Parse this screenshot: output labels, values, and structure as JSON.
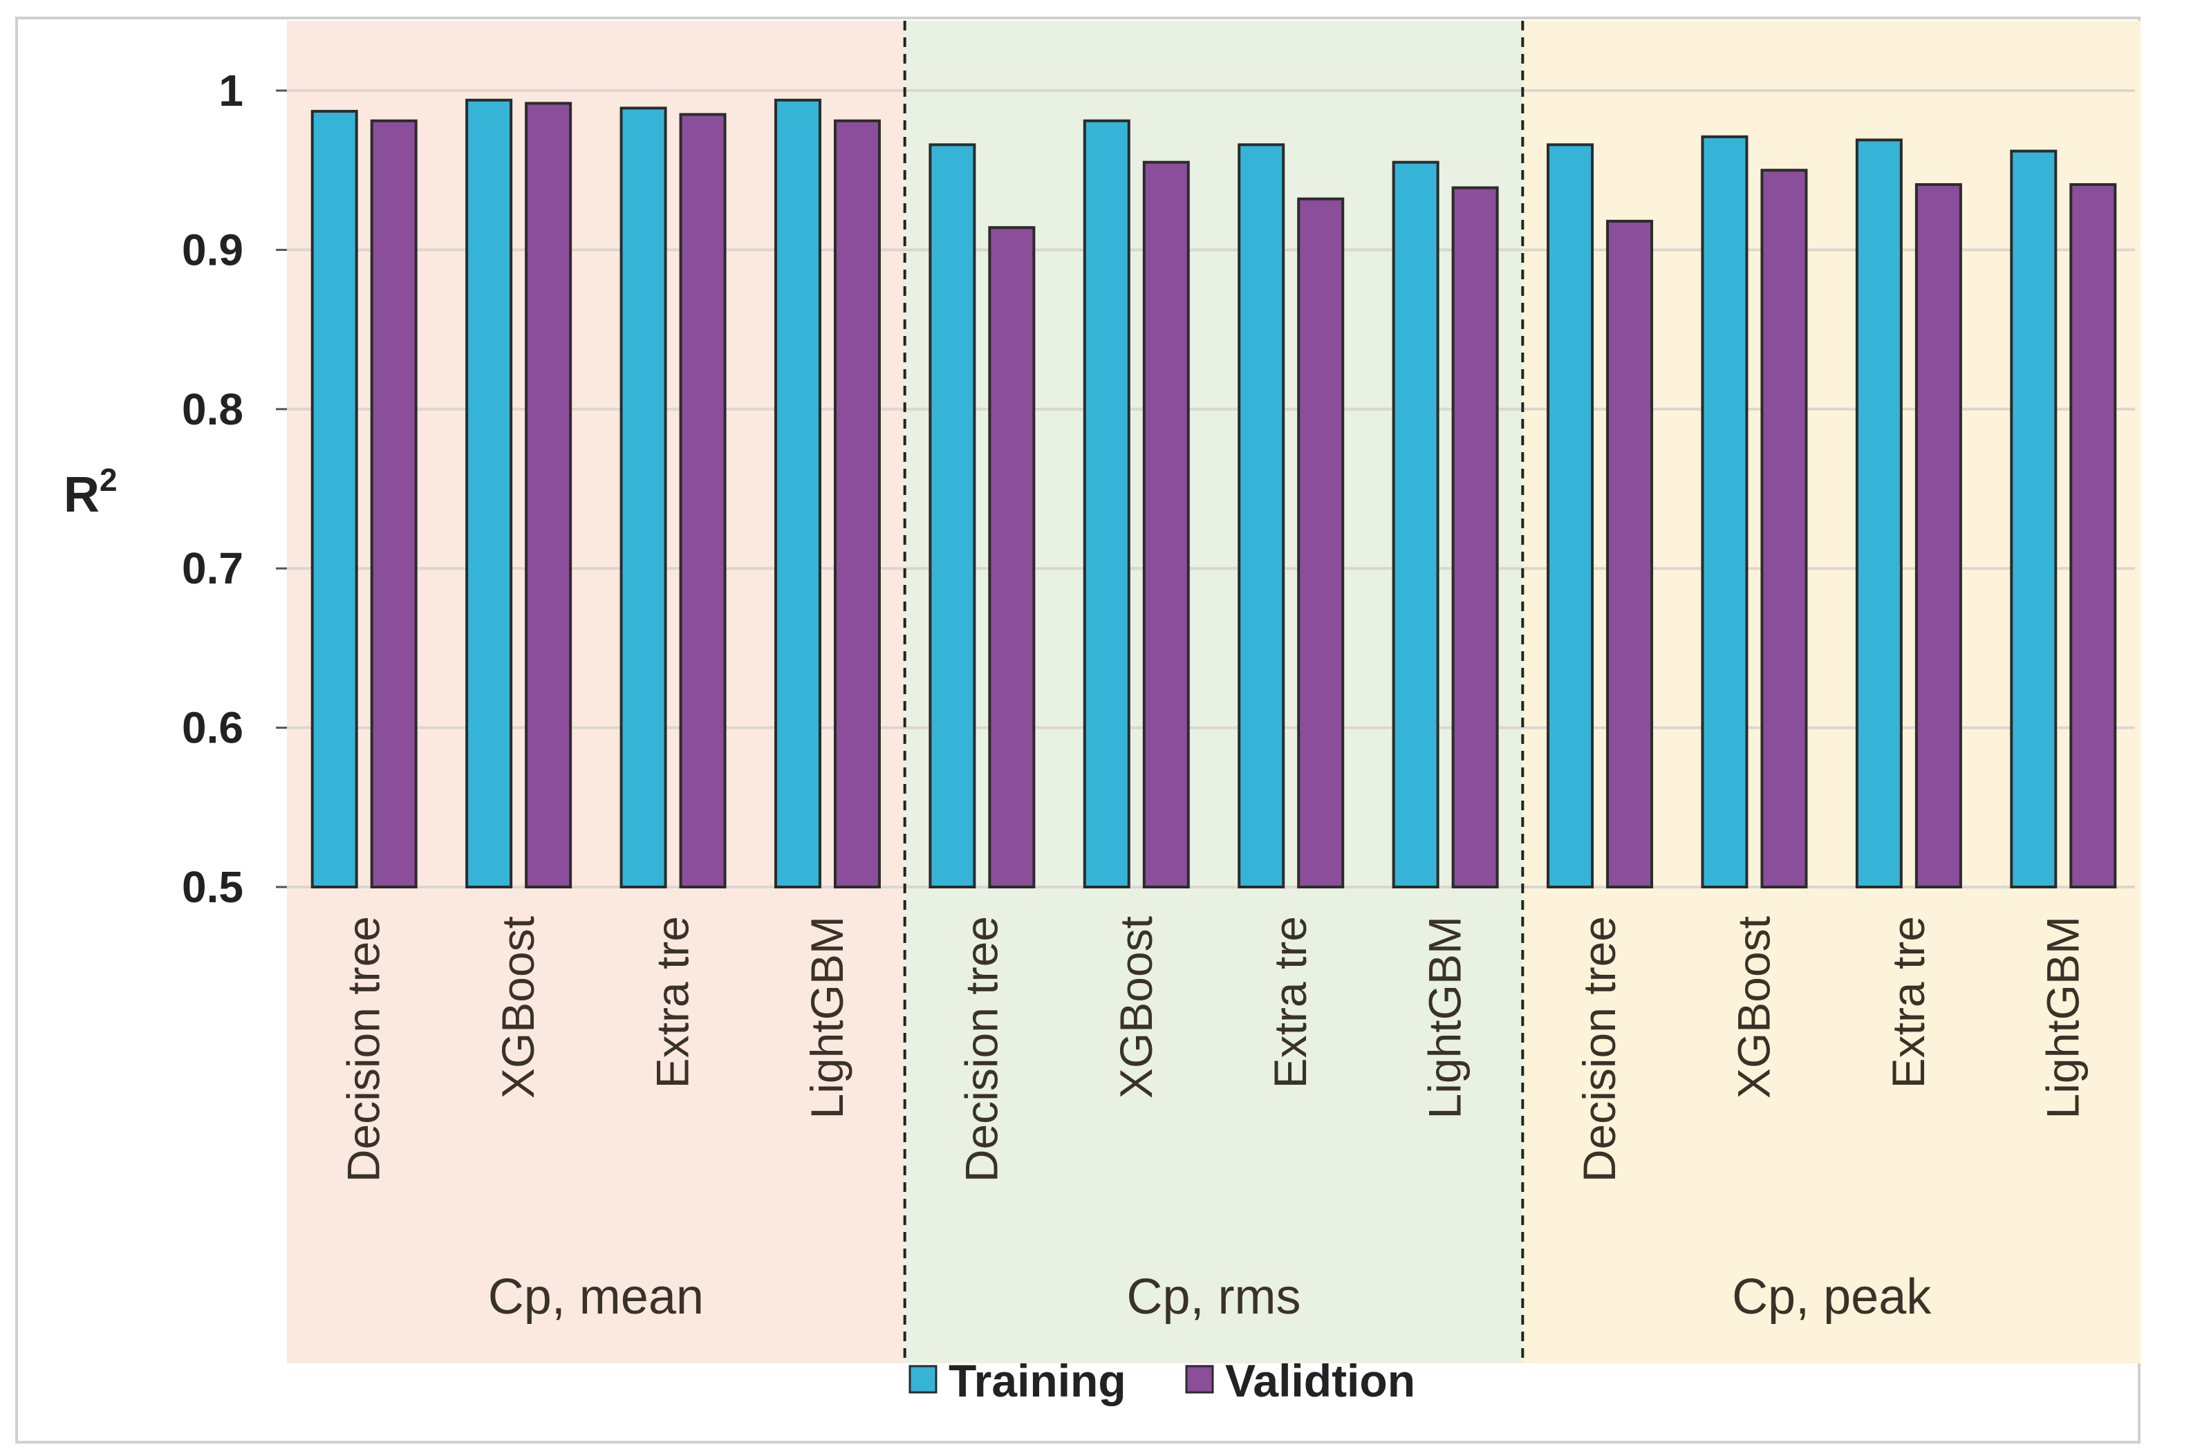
{
  "chart_data": {
    "type": "bar",
    "ylabel": "R",
    "ylabel_superscript": "2",
    "ylim": [
      0.5,
      1.0
    ],
    "yticks": [
      0.5,
      0.6,
      0.7,
      0.8,
      0.9,
      1
    ],
    "ytick_labels": [
      "0.5",
      "0.6",
      "0.7",
      "0.8",
      "0.9",
      "1"
    ],
    "grid": true,
    "legend_position": "bottom",
    "groups": [
      {
        "label": "Cp, mean",
        "background": "#fbe9df",
        "categories": [
          "Decision tree",
          "XGBoost",
          "Extra tre",
          "LightGBM"
        ],
        "series": [
          {
            "name": "Training",
            "values": [
              0.987,
              0.994,
              0.989,
              0.994
            ]
          },
          {
            "name": "Validtion",
            "values": [
              0.981,
              0.992,
              0.985,
              0.981
            ]
          }
        ]
      },
      {
        "label": "Cp, rms",
        "background": "#e8f1e2",
        "categories": [
          "Decision tree",
          "XGBoost",
          "Extra tre",
          "LightGBM"
        ],
        "series": [
          {
            "name": "Training",
            "values": [
              0.966,
              0.981,
              0.966,
              0.955
            ]
          },
          {
            "name": "Validtion",
            "values": [
              0.914,
              0.955,
              0.932,
              0.939
            ]
          }
        ]
      },
      {
        "label": "Cp, peak",
        "background": "#fdf3da",
        "categories": [
          "Decision tree",
          "XGBoost",
          "Extra tre",
          "LightGBM"
        ],
        "series": [
          {
            "name": "Training",
            "values": [
              0.966,
              0.971,
              0.969,
              0.962
            ]
          },
          {
            "name": "Validtion",
            "values": [
              0.918,
              0.95,
              0.941,
              0.941
            ]
          }
        ]
      }
    ],
    "legend": [
      {
        "name": "Training",
        "color": "#35b4d8"
      },
      {
        "name": "Validtion",
        "color": "#8a4e9a"
      }
    ]
  }
}
